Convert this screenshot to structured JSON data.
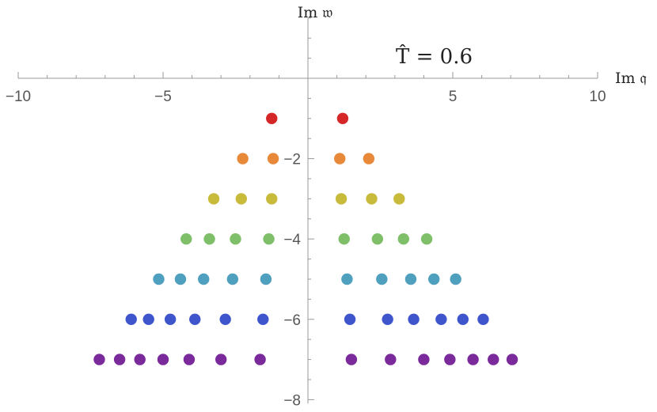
{
  "chart_data": {
    "type": "scatter",
    "title": "",
    "xlabel": "Im 𝔮",
    "ylabel": "Im 𝔴",
    "annotation": "T̂ = 0.6",
    "xlim": [
      -10,
      10
    ],
    "ylim": [
      -8,
      1.5
    ],
    "xticks": [
      -10,
      -5,
      5,
      10
    ],
    "xtick_labels": [
      "−10",
      "−5",
      "5",
      "10"
    ],
    "yticks": [
      -2,
      -4,
      -6,
      -8
    ],
    "ytick_labels": [
      "−2",
      "−4",
      "−6",
      "−8"
    ],
    "grid": false,
    "legend": false,
    "series": [
      {
        "color": "#d62728",
        "y": -1,
        "x": [
          -1.25,
          1.2
        ]
      },
      {
        "color": "#e8893a",
        "y": -2,
        "x": [
          -2.25,
          -1.2,
          1.1,
          2.1
        ]
      },
      {
        "color": "#c8bb3c",
        "y": -3,
        "x": [
          -3.25,
          -2.3,
          -1.25,
          1.15,
          2.2,
          3.15
        ]
      },
      {
        "color": "#7fbf6a",
        "y": -4,
        "x": [
          -4.2,
          -3.4,
          -2.5,
          -1.35,
          1.25,
          2.4,
          3.3,
          4.1
        ]
      },
      {
        "color": "#4f9fbf",
        "y": -5,
        "x": [
          -5.15,
          -4.4,
          -3.6,
          -2.6,
          -1.45,
          1.35,
          2.55,
          3.55,
          4.35,
          5.1
        ]
      },
      {
        "color": "#3e55cc",
        "y": -6,
        "x": [
          -6.1,
          -5.5,
          -4.75,
          -3.9,
          -2.85,
          -1.55,
          1.45,
          2.75,
          3.65,
          4.6,
          5.35,
          6.05
        ]
      },
      {
        "color": "#7a2a9a",
        "y": -7,
        "x": [
          -7.2,
          -6.5,
          -5.8,
          -5.0,
          -4.1,
          -3.0,
          -1.65,
          1.5,
          2.85,
          4.0,
          4.9,
          5.7,
          6.4,
          7.05
        ]
      }
    ]
  }
}
